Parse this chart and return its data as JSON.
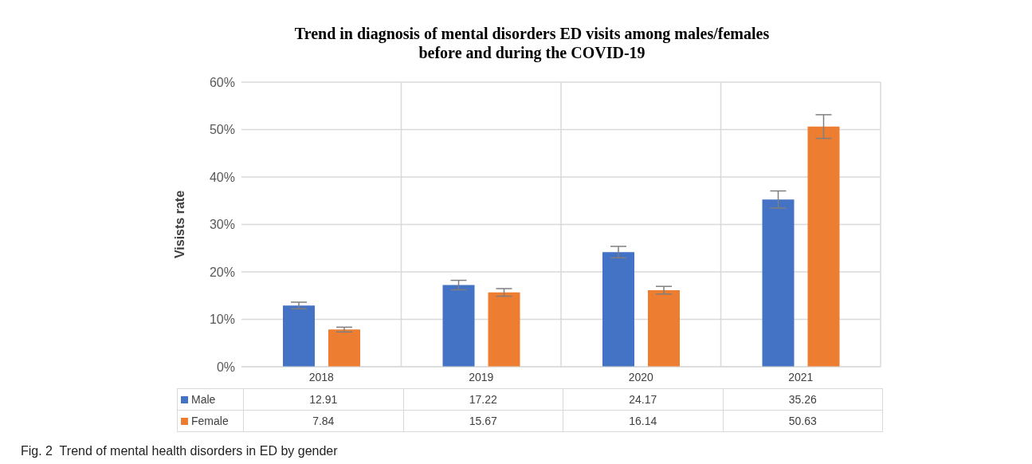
{
  "chart_data": {
    "type": "bar",
    "title": "Trend in diagnosis of mental disorders ED visits among males/females\nbefore and during the COVID-19",
    "ylabel": "Visists rate",
    "categories": [
      "2018",
      "2019",
      "2020",
      "2021"
    ],
    "series": [
      {
        "name": "Male",
        "color": "#4472c4",
        "values": [
          12.91,
          17.22,
          24.17,
          35.26
        ],
        "errors": [
          0.7,
          1.0,
          1.2,
          1.8
        ]
      },
      {
        "name": "Female",
        "color": "#ed7d31",
        "values": [
          7.84,
          15.67,
          16.14,
          50.63
        ],
        "errors": [
          0.5,
          0.8,
          0.8,
          2.5
        ]
      }
    ],
    "ylim": [
      0,
      60
    ],
    "yticks": [
      {
        "value": 0,
        "label": "0%"
      },
      {
        "value": 10,
        "label": "10%"
      },
      {
        "value": 20,
        "label": "20%"
      },
      {
        "value": 30,
        "label": "30%"
      },
      {
        "value": 40,
        "label": "40%"
      },
      {
        "value": 50,
        "label": "50%"
      },
      {
        "value": 60,
        "label": "60%"
      }
    ],
    "grid": true,
    "legend": "bottom",
    "data_labels": true,
    "annotations": [
      "Fig. 2  Trend of mental health disorders in ED by gender"
    ]
  }
}
